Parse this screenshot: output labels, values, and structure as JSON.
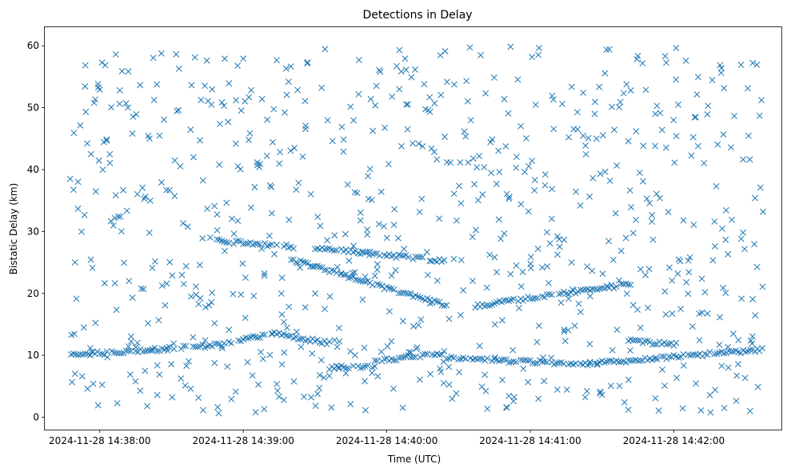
{
  "chart_data": {
    "type": "scatter",
    "title": "Detections in Delay",
    "xlabel": "Time (UTC)",
    "ylabel": "Bistatic Delay (km)",
    "marker": "x",
    "color": "#1f77b4",
    "grid": false,
    "x_axis": {
      "scale": "time",
      "min": "2024-11-28 14:37:37",
      "max": "2024-11-28 14:42:45",
      "ticks": [
        "2024-11-28 14:38:00",
        "2024-11-28 14:39:00",
        "2024-11-28 14:40:00",
        "2024-11-28 14:41:00",
        "2024-11-28 14:42:00"
      ]
    },
    "y_axis": {
      "min": -2.0,
      "max": 63.0,
      "ticks": [
        0,
        10,
        20,
        30,
        40,
        50,
        60
      ]
    },
    "series": [
      {
        "x_start": "2024-11-28 14:37:48",
        "x_end": "2024-11-28 14:42:37",
        "interval_seconds": 1,
        "track_segments": [
          {
            "from": "2024-11-28 14:37:48",
            "to": "2024-11-28 14:38:51",
            "y_from": 10.0,
            "y_to": 11.7
          },
          {
            "from": "2024-11-28 14:38:51",
            "to": "2024-11-28 14:39:12",
            "y_from": 11.7,
            "y_to": 13.5
          },
          {
            "from": "2024-11-28 14:39:12",
            "to": "2024-11-28 14:39:36",
            "y_from": 13.5,
            "y_to": 12.0
          },
          {
            "from": "2024-11-28 14:39:36",
            "to": "2024-11-28 14:39:55",
            "y_from": 8.0,
            "y_to": 8.2
          },
          {
            "from": "2024-11-28 14:39:55",
            "to": "2024-11-28 14:40:25",
            "y_from": 9.0,
            "y_to": 10.5
          },
          {
            "from": "2024-11-28 14:40:25",
            "to": "2024-11-28 14:41:25",
            "y_from": 9.6,
            "y_to": 8.5
          },
          {
            "from": "2024-11-28 14:41:25",
            "to": "2024-11-28 14:42:37",
            "y_from": 8.7,
            "y_to": 10.9
          },
          {
            "from": "2024-11-28 14:38:48",
            "to": "2024-11-28 14:39:21",
            "y_from": 28.5,
            "y_to": 27.5
          },
          {
            "from": "2024-11-28 14:39:20",
            "to": "2024-11-28 14:40:25",
            "y_from": 25.5,
            "y_to": 18.0
          },
          {
            "from": "2024-11-28 14:39:30",
            "to": "2024-11-28 14:40:24",
            "y_from": 27.3,
            "y_to": 25.3
          },
          {
            "from": "2024-11-28 14:40:37",
            "to": "2024-11-28 14:41:42",
            "y_from": 18.0,
            "y_to": 21.5
          },
          {
            "from": "2024-11-28 14:41:41",
            "to": "2024-11-28 14:42:01",
            "y_from": 12.3,
            "y_to": 11.8
          }
        ],
        "clutter_y_range": [
          0.5,
          60.0
        ]
      }
    ]
  }
}
